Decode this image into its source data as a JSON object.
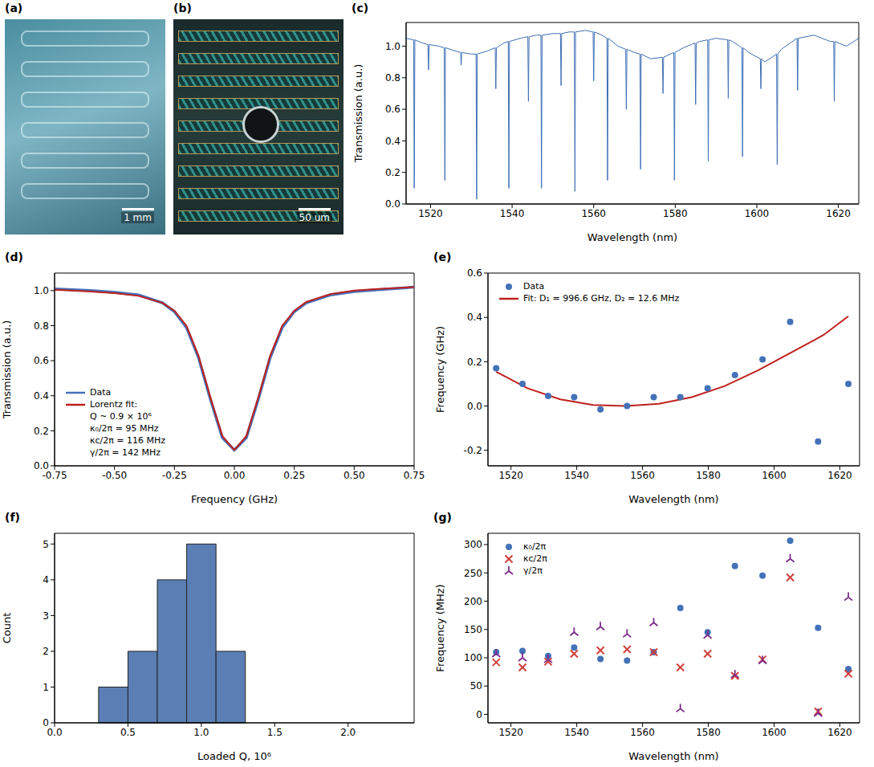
{
  "chart_data": [
    {
      "panel": "(a)",
      "type": "image",
      "scale_bar": "1 mm"
    },
    {
      "panel": "(b)",
      "type": "image",
      "scale_bar": "50 um"
    },
    {
      "panel": "(c)",
      "type": "line",
      "color": "#3f6fb5",
      "x": [
        1514,
        1515.85,
        1516,
        1516.15,
        1518,
        1519.35,
        1519.5,
        1519.65,
        1522,
        1523.35,
        1523.5,
        1523.65,
        1526,
        1527.35,
        1527.5,
        1527.65,
        1530,
        1531.15,
        1531.3,
        1531.45,
        1534,
        1535.85,
        1536,
        1536.15,
        1538,
        1539.05,
        1539.2,
        1539.35,
        1542,
        1543.85,
        1544,
        1544.15,
        1546,
        1547.05,
        1547.2,
        1547.35,
        1550,
        1551.85,
        1552,
        1552.15,
        1554,
        1555.25,
        1555.4,
        1555.55,
        1558,
        1559.85,
        1560,
        1560.15,
        1562,
        1563.25,
        1563.4,
        1563.55,
        1566,
        1567.85,
        1568,
        1568.15,
        1570,
        1571.35,
        1571.5,
        1571.65,
        1574,
        1576.85,
        1577,
        1577.15,
        1578,
        1579.65,
        1579.8,
        1579.95,
        1582,
        1584.85,
        1585,
        1585.15,
        1586,
        1587.95,
        1588.1,
        1588.25,
        1590,
        1592.85,
        1593,
        1593.15,
        1594,
        1596.35,
        1596.5,
        1596.65,
        1598,
        1600.85,
        1601,
        1601.15,
        1602,
        1604.85,
        1605,
        1605.15,
        1606,
        1609.85,
        1610,
        1610.15,
        1614,
        1618,
        1618.85,
        1619,
        1619.15,
        1622,
        1625
      ],
      "values": [
        1.05,
        1.04,
        0.1,
        1.04,
        1.02,
        1.01,
        0.85,
        1.01,
        1.0,
        0.99,
        0.15,
        0.99,
        0.97,
        0.96,
        0.88,
        0.96,
        0.95,
        0.95,
        0.03,
        0.95,
        0.97,
        0.99,
        0.73,
        0.99,
        1.02,
        1.03,
        0.1,
        1.03,
        1.05,
        1.06,
        0.65,
        1.06,
        1.07,
        1.07,
        0.1,
        1.07,
        1.08,
        1.08,
        0.75,
        1.08,
        1.09,
        1.09,
        0.08,
        1.09,
        1.1,
        1.09,
        0.78,
        1.09,
        1.07,
        1.05,
        0.15,
        1.05,
        1.0,
        0.98,
        0.6,
        0.98,
        0.96,
        0.95,
        0.22,
        0.95,
        0.92,
        0.93,
        0.7,
        0.93,
        0.94,
        0.96,
        0.15,
        0.96,
        0.99,
        1.02,
        0.63,
        1.02,
        1.03,
        1.04,
        0.27,
        1.04,
        1.05,
        1.04,
        0.67,
        1.04,
        1.03,
        0.99,
        0.3,
        0.99,
        0.96,
        0.92,
        0.73,
        0.92,
        0.9,
        0.95,
        0.25,
        0.95,
        0.98,
        1.05,
        0.72,
        1.05,
        1.07,
        1.03,
        1.03,
        0.65,
        1.03,
        1.0,
        1.05
      ],
      "xlim": [
        1514,
        1625
      ],
      "ylim": [
        0,
        1.15
      ],
      "xticks": [
        1520,
        1540,
        1560,
        1580,
        1600,
        1620
      ],
      "yticks": [
        {
          "value": 0,
          "label": "0.0"
        },
        {
          "value": 0.2,
          "label": "0.2"
        },
        {
          "value": 0.4,
          "label": "0.4"
        },
        {
          "value": 0.6,
          "label": "0.6"
        },
        {
          "value": 0.8,
          "label": "0.8"
        },
        {
          "value": 1,
          "label": "1.0"
        }
      ],
      "xlabel": "Wavelength (nm)",
      "ylabel": "Transmission (a.u.)",
      "grid": false
    },
    {
      "panel": "(d)",
      "type": "line",
      "series": [
        {
          "name": "Data",
          "color": "#4472b8",
          "x": [
            -0.75,
            -0.6,
            -0.5,
            -0.4,
            -0.3,
            -0.25,
            -0.2,
            -0.15,
            -0.1,
            -0.05,
            0,
            0.05,
            0.1,
            0.15,
            0.2,
            0.25,
            0.3,
            0.4,
            0.5,
            0.6,
            0.75
          ],
          "values": [
            1.01,
            1.0,
            0.99,
            0.975,
            0.93,
            0.88,
            0.79,
            0.62,
            0.38,
            0.16,
            0.09,
            0.16,
            0.38,
            0.62,
            0.79,
            0.88,
            0.93,
            0.975,
            0.995,
            1.005,
            1.02
          ]
        },
        {
          "name": "Lorentz fit:",
          "color": "#c0201e",
          "annotations": [
            "Q ~ 0.9 × 10⁶",
            "κ₀/2π = 95 MHz",
            "κc/2π = 116 MHz",
            "γ/2π = 142 MHz"
          ],
          "x": [
            -0.75,
            -0.6,
            -0.5,
            -0.4,
            -0.3,
            -0.25,
            -0.2,
            -0.15,
            -0.1,
            -0.05,
            0,
            0.05,
            0.1,
            0.15,
            0.2,
            0.25,
            0.3,
            0.4,
            0.5,
            0.6,
            0.75
          ],
          "values": [
            1.005,
            0.995,
            0.985,
            0.97,
            0.93,
            0.885,
            0.8,
            0.63,
            0.39,
            0.17,
            0.09,
            0.17,
            0.39,
            0.63,
            0.8,
            0.885,
            0.935,
            0.98,
            1.0,
            1.01,
            1.02
          ]
        }
      ],
      "xlim": [
        -0.75,
        0.75
      ],
      "ylim": [
        0,
        1.1
      ],
      "xticks": [
        {
          "value": -0.75,
          "label": "-0.75"
        },
        {
          "value": -0.5,
          "label": "-0.50"
        },
        {
          "value": -0.25,
          "label": "-0.25"
        },
        {
          "value": 0,
          "label": "0.00"
        },
        {
          "value": 0.25,
          "label": "0.25"
        },
        {
          "value": 0.5,
          "label": "0.50"
        },
        {
          "value": 0.75,
          "label": "0.75"
        }
      ],
      "yticks": [
        {
          "value": 0,
          "label": "0.0"
        },
        {
          "value": 0.2,
          "label": "0.2"
        },
        {
          "value": 0.4,
          "label": "0.4"
        },
        {
          "value": 0.6,
          "label": "0.6"
        },
        {
          "value": 0.8,
          "label": "0.8"
        },
        {
          "value": 1,
          "label": "1.0"
        }
      ],
      "xlabel": "Frequency (GHz)",
      "ylabel": "Transmission (a.u.)",
      "legend": "lower left",
      "grid": false
    },
    {
      "panel": "(e)",
      "type": "scatter",
      "series": [
        {
          "name": "Data",
          "type": "scatter",
          "marker": "circle",
          "color": "#4472b8",
          "x": [
            1515.5,
            1523.5,
            1531.3,
            1539.2,
            1547.2,
            1555.3,
            1563.4,
            1571.5,
            1579.8,
            1588.1,
            1596.5,
            1604.9,
            1613.4,
            1622.6
          ],
          "values": [
            0.17,
            0.1,
            0.045,
            0.04,
            -0.015,
            0.0,
            0.04,
            0.04,
            0.08,
            0.14,
            0.21,
            0.38,
            -0.16,
            0.1
          ]
        },
        {
          "name": "Fit: D₁ = 996.6 GHz, D₂ = 12.6 MHz",
          "type": "line",
          "color": "#c0201e",
          "x": [
            1515.5,
            1525,
            1535,
            1545,
            1555,
            1565,
            1575,
            1585,
            1595,
            1605,
            1615,
            1622.6
          ],
          "values": [
            0.155,
            0.08,
            0.03,
            0.005,
            0.0,
            0.01,
            0.04,
            0.09,
            0.16,
            0.24,
            0.32,
            0.405
          ]
        }
      ],
      "xlim": [
        1513,
        1626
      ],
      "ylim": [
        -0.27,
        0.6
      ],
      "xticks": [
        1520,
        1540,
        1560,
        1580,
        1600,
        1620
      ],
      "yticks": [
        {
          "value": -0.2,
          "label": "-0.2"
        },
        {
          "value": 0,
          "label": "0.0"
        },
        {
          "value": 0.2,
          "label": "0.2"
        },
        {
          "value": 0.4,
          "label": "0.4"
        },
        {
          "value": 0.6,
          "label": "0.6"
        }
      ],
      "xlabel": "Wavelength (nm)",
      "ylabel": "Frequency (GHz)",
      "legend": "upper left",
      "grid": false
    },
    {
      "panel": "(f)",
      "type": "histogram",
      "color": "#5b7fb5",
      "bins": [
        0.3,
        0.5,
        0.7,
        0.9,
        1.1,
        1.3
      ],
      "counts": [
        1,
        2,
        4,
        5,
        2
      ],
      "xlim": [
        0,
        2.45
      ],
      "ylim": [
        0,
        5.3
      ],
      "xticks": [
        {
          "value": 0,
          "label": "0.0"
        },
        0.5,
        {
          "value": 1,
          "label": "1.0"
        },
        1.5,
        {
          "value": 2,
          "label": "2.0"
        }
      ],
      "yticks": [
        0,
        1,
        2,
        3,
        4,
        5
      ],
      "xlabel": "Loaded Q, 10⁶",
      "ylabel": "Count",
      "grid": false
    },
    {
      "panel": "(g)",
      "type": "scatter",
      "x": [
        1515.5,
        1523.5,
        1531.3,
        1539.2,
        1547.2,
        1555.3,
        1563.4,
        1571.5,
        1579.8,
        1588.1,
        1596.5,
        1604.9,
        1613.4,
        1622.6
      ],
      "series": [
        {
          "name": "κ₀/2π",
          "marker": "circle",
          "color": "#4472b8",
          "values": [
            110,
            112,
            103,
            118,
            98,
            95,
            110,
            188,
            145,
            262,
            245,
            307,
            153,
            80
          ]
        },
        {
          "name": "κc/2π",
          "marker": "x",
          "color": "#d0403a",
          "values": [
            92,
            83,
            93,
            107,
            113,
            115,
            110,
            83,
            107,
            68,
            97,
            242,
            5,
            72
          ]
        },
        {
          "name": "γ/2π",
          "marker": "tri",
          "color": "#7a2a8a",
          "values": [
            107,
            100,
            97,
            145,
            155,
            142,
            162,
            10,
            140,
            70,
            95,
            275,
            2,
            207
          ]
        }
      ],
      "xlim": [
        1513,
        1626
      ],
      "ylim": [
        -15,
        320
      ],
      "xticks": [
        1520,
        1540,
        1560,
        1580,
        1600,
        1620
      ],
      "yticks": [
        0,
        50,
        100,
        150,
        200,
        250,
        300
      ],
      "xlabel": "Wavelength (nm)",
      "ylabel": "Frequency (MHz)",
      "legend": "upper left",
      "grid": false
    }
  ]
}
